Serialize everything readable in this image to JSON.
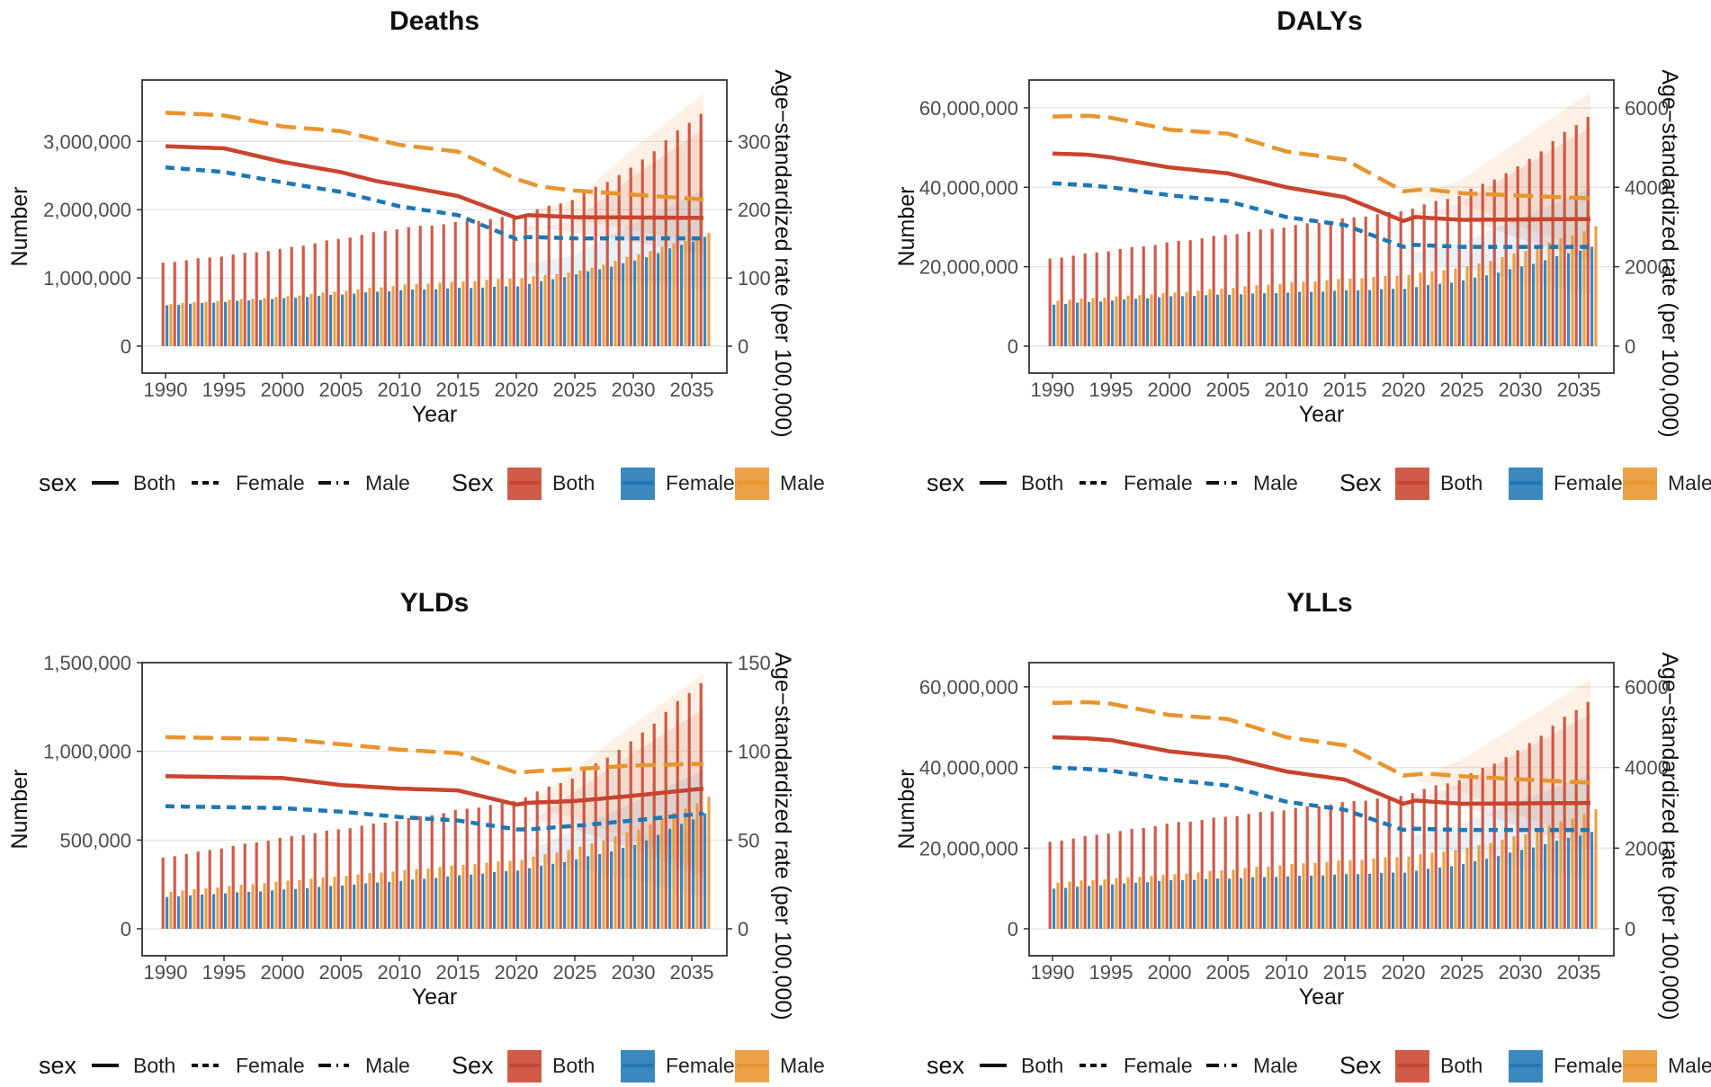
{
  "colors": {
    "both": "#C9442F",
    "female": "#1F77B4",
    "male": "#E8952E",
    "grid": "#e6e6e6",
    "frame": "#333333"
  },
  "legend": {
    "line_title": "sex",
    "bar_title": "Sex",
    "both": "Both",
    "female": "Female",
    "male": "Male"
  },
  "chart_data": [
    {
      "type": "bar+line",
      "title": "Deaths",
      "xlabel": "Year",
      "ylabel": "Number",
      "y2label": "Age−standardized rate (per 100,000)",
      "x_ticks": [
        "1990",
        "1995",
        "2000",
        "2005",
        "2010",
        "2015",
        "2020",
        "2025",
        "2030",
        "2035"
      ],
      "ylim": [
        0,
        3900000
      ],
      "y_ticks": [
        0,
        1000000,
        2000000,
        3000000
      ],
      "y_tick_labels": [
        "0",
        "1,000,000",
        "2,000,000",
        "3,000,000"
      ],
      "y2lim": [
        0,
        390
      ],
      "y2_ticks": [
        0,
        100,
        200,
        300
      ],
      "y2_tick_labels": [
        "0",
        "100",
        "200",
        "300"
      ],
      "bar_anchors": {
        "both": [
          [
            1990,
            1220000
          ],
          [
            2000,
            1420000
          ],
          [
            2010,
            1720000
          ],
          [
            2020,
            1900000
          ],
          [
            2025,
            2150000
          ],
          [
            2030,
            2600000
          ],
          [
            2036,
            3420000
          ]
        ],
        "female": [
          [
            1990,
            600000
          ],
          [
            2000,
            700000
          ],
          [
            2010,
            820000
          ],
          [
            2020,
            880000
          ],
          [
            2025,
            1050000
          ],
          [
            2030,
            1250000
          ],
          [
            2036,
            1600000
          ]
        ],
        "male": [
          [
            1990,
            620000
          ],
          [
            2000,
            730000
          ],
          [
            2010,
            900000
          ],
          [
            2020,
            1000000
          ],
          [
            2025,
            1100000
          ],
          [
            2030,
            1350000
          ],
          [
            2036,
            1650000
          ]
        ]
      },
      "rate_anchors": {
        "both": [
          [
            1990,
            293
          ],
          [
            1993,
            291
          ],
          [
            1995,
            290
          ],
          [
            2000,
            270
          ],
          [
            2005,
            255
          ],
          [
            2008,
            242
          ],
          [
            2010,
            236
          ],
          [
            2015,
            220
          ],
          [
            2020,
            188
          ],
          [
            2021,
            192
          ],
          [
            2025,
            189
          ],
          [
            2036,
            188
          ]
        ],
        "female": [
          [
            1990,
            262
          ],
          [
            1993,
            258
          ],
          [
            1995,
            255
          ],
          [
            2000,
            240
          ],
          [
            2005,
            226
          ],
          [
            2010,
            205
          ],
          [
            2015,
            192
          ],
          [
            2020,
            157
          ],
          [
            2021,
            160
          ],
          [
            2025,
            158
          ],
          [
            2036,
            158
          ]
        ],
        "male": [
          [
            1990,
            342
          ],
          [
            1993,
            340
          ],
          [
            1995,
            338
          ],
          [
            2000,
            322
          ],
          [
            2005,
            315
          ],
          [
            2010,
            295
          ],
          [
            2015,
            285
          ],
          [
            2020,
            245
          ],
          [
            2022,
            234
          ],
          [
            2025,
            228
          ],
          [
            2030,
            222
          ],
          [
            2036,
            215
          ]
        ]
      },
      "ribbon": [
        [
          2021,
          1960000,
          1960000
        ],
        [
          2025,
          2150000,
          1850000
        ],
        [
          2030,
          2900000,
          1700000
        ],
        [
          2036,
          3700000,
          1500000
        ]
      ]
    },
    {
      "type": "bar+line",
      "title": "DALYs",
      "xlabel": "Year",
      "ylabel": "Number",
      "y2label": "Age−standardized rate (per 100,000)",
      "x_ticks": [
        "1990",
        "1995",
        "2000",
        "2005",
        "2010",
        "2015",
        "2020",
        "2025",
        "2030",
        "2035"
      ],
      "ylim": [
        0,
        67000000
      ],
      "y_ticks": [
        0,
        20000000,
        40000000,
        60000000
      ],
      "y_tick_labels": [
        "0",
        "20,000,000",
        "40,000,000",
        "60,000,000"
      ],
      "y2lim": [
        0,
        6700
      ],
      "y2_ticks": [
        0,
        2000,
        4000,
        6000
      ],
      "y2_tick_labels": [
        "0",
        "2000",
        "4000",
        "6000"
      ],
      "bar_anchors": {
        "both": [
          [
            1990,
            22000000
          ],
          [
            2000,
            26000000
          ],
          [
            2010,
            30000000
          ],
          [
            2020,
            34000000
          ],
          [
            2025,
            38000000
          ],
          [
            2030,
            45000000
          ],
          [
            2036,
            58000000
          ]
        ],
        "female": [
          [
            1990,
            10500000
          ],
          [
            2000,
            12500000
          ],
          [
            2010,
            13500000
          ],
          [
            2020,
            14500000
          ],
          [
            2025,
            16500000
          ],
          [
            2030,
            20000000
          ],
          [
            2036,
            25000000
          ]
        ],
        "male": [
          [
            1990,
            11500000
          ],
          [
            2000,
            13500000
          ],
          [
            2010,
            16000000
          ],
          [
            2020,
            18000000
          ],
          [
            2025,
            20000000
          ],
          [
            2030,
            24000000
          ],
          [
            2036,
            30000000
          ]
        ]
      },
      "rate_anchors": {
        "both": [
          [
            1990,
            4850
          ],
          [
            1993,
            4820
          ],
          [
            1995,
            4750
          ],
          [
            2000,
            4500
          ],
          [
            2005,
            4350
          ],
          [
            2010,
            4000
          ],
          [
            2015,
            3750
          ],
          [
            2020,
            3150
          ],
          [
            2021,
            3250
          ],
          [
            2025,
            3180
          ],
          [
            2036,
            3200
          ]
        ],
        "female": [
          [
            1990,
            4100
          ],
          [
            1993,
            4050
          ],
          [
            1995,
            4000
          ],
          [
            2000,
            3800
          ],
          [
            2005,
            3650
          ],
          [
            2010,
            3250
          ],
          [
            2015,
            3050
          ],
          [
            2020,
            2500
          ],
          [
            2021,
            2550
          ],
          [
            2025,
            2500
          ],
          [
            2036,
            2500
          ]
        ],
        "male": [
          [
            1990,
            5780
          ],
          [
            1993,
            5800
          ],
          [
            1995,
            5750
          ],
          [
            2000,
            5450
          ],
          [
            2005,
            5350
          ],
          [
            2010,
            4900
          ],
          [
            2015,
            4700
          ],
          [
            2020,
            3900
          ],
          [
            2022,
            3950
          ],
          [
            2025,
            3850
          ],
          [
            2036,
            3720
          ]
        ]
      },
      "ribbon": [
        [
          2021,
          38000000,
          38000000
        ],
        [
          2025,
          42000000,
          36000000
        ],
        [
          2030,
          52000000,
          30000000
        ],
        [
          2036,
          64000000,
          24000000
        ]
      ]
    },
    {
      "type": "bar+line",
      "title": "YLDs",
      "xlabel": "Year",
      "ylabel": "Number",
      "y2label": "Age−standardized rate (per 100,000)",
      "x_ticks": [
        "1990",
        "1995",
        "2000",
        "2005",
        "2010",
        "2015",
        "2020",
        "2025",
        "2030",
        "2035"
      ],
      "ylim": [
        0,
        1500000
      ],
      "y_ticks": [
        0,
        500000,
        1000000,
        1500000
      ],
      "y_tick_labels": [
        "0",
        "500,000",
        "1,000,000",
        "1,500,000"
      ],
      "y2lim": [
        0,
        150
      ],
      "y2_ticks": [
        0,
        50,
        100,
        150
      ],
      "y2_tick_labels": [
        "0",
        "50",
        "100",
        "150"
      ],
      "bar_anchors": {
        "both": [
          [
            1990,
            400000
          ],
          [
            2000,
            510000
          ],
          [
            2010,
            610000
          ],
          [
            2020,
            720000
          ],
          [
            2025,
            850000
          ],
          [
            2030,
            1050000
          ],
          [
            2036,
            1390000
          ]
        ],
        "female": [
          [
            1990,
            180000
          ],
          [
            2000,
            220000
          ],
          [
            2010,
            270000
          ],
          [
            2020,
            330000
          ],
          [
            2025,
            390000
          ],
          [
            2030,
            470000
          ],
          [
            2036,
            650000
          ]
        ],
        "male": [
          [
            1990,
            210000
          ],
          [
            2000,
            270000
          ],
          [
            2010,
            330000
          ],
          [
            2020,
            390000
          ],
          [
            2025,
            460000
          ],
          [
            2030,
            560000
          ],
          [
            2036,
            740000
          ]
        ]
      },
      "rate_anchors": {
        "both": [
          [
            1990,
            86
          ],
          [
            2000,
            85
          ],
          [
            2005,
            81
          ],
          [
            2010,
            79
          ],
          [
            2015,
            78
          ],
          [
            2020,
            70
          ],
          [
            2021,
            71
          ],
          [
            2025,
            72
          ],
          [
            2030,
            75
          ],
          [
            2036,
            79
          ]
        ],
        "female": [
          [
            1990,
            69
          ],
          [
            2000,
            68
          ],
          [
            2005,
            66
          ],
          [
            2010,
            63
          ],
          [
            2015,
            61
          ],
          [
            2020,
            56
          ],
          [
            2021,
            56
          ],
          [
            2025,
            58
          ],
          [
            2030,
            61
          ],
          [
            2036,
            65
          ]
        ],
        "male": [
          [
            1990,
            108
          ],
          [
            2000,
            107
          ],
          [
            2005,
            104
          ],
          [
            2010,
            101
          ],
          [
            2015,
            99
          ],
          [
            2020,
            88
          ],
          [
            2022,
            89
          ],
          [
            2025,
            90
          ],
          [
            2030,
            92
          ],
          [
            2036,
            93
          ]
        ]
      },
      "ribbon": [
        [
          2021,
          700000,
          700000
        ],
        [
          2025,
          900000,
          620000
        ],
        [
          2030,
          1150000,
          500000
        ],
        [
          2036,
          1440000,
          320000
        ]
      ]
    },
    {
      "type": "bar+line",
      "title": "YLLs",
      "xlabel": "Year",
      "ylabel": "Number",
      "y2label": "Age−standardized rate (per 100,000)",
      "x_ticks": [
        "1990",
        "1995",
        "2000",
        "2005",
        "2010",
        "2015",
        "2020",
        "2025",
        "2030",
        "2035"
      ],
      "ylim": [
        0,
        66000000
      ],
      "y_ticks": [
        0,
        20000000,
        40000000,
        60000000
      ],
      "y_tick_labels": [
        "0",
        "20,000,000",
        "40,000,000",
        "60,000,000"
      ],
      "y2lim": [
        0,
        6600
      ],
      "y2_ticks": [
        0,
        2000,
        4000,
        6000
      ],
      "y2_tick_labels": [
        "0",
        "2000",
        "4000",
        "6000"
      ],
      "bar_anchors": {
        "both": [
          [
            1990,
            21500000
          ],
          [
            2000,
            26000000
          ],
          [
            2010,
            29500000
          ],
          [
            2020,
            33000000
          ],
          [
            2025,
            37000000
          ],
          [
            2030,
            44000000
          ],
          [
            2036,
            56500000
          ]
        ],
        "female": [
          [
            1990,
            10000000
          ],
          [
            2000,
            12000000
          ],
          [
            2010,
            13000000
          ],
          [
            2020,
            14000000
          ],
          [
            2025,
            16000000
          ],
          [
            2030,
            19500000
          ],
          [
            2036,
            24000000
          ]
        ],
        "male": [
          [
            1990,
            11500000
          ],
          [
            2000,
            13500000
          ],
          [
            2010,
            16000000
          ],
          [
            2020,
            18000000
          ],
          [
            2025,
            20000000
          ],
          [
            2030,
            23500000
          ],
          [
            2036,
            29500000
          ]
        ]
      },
      "rate_anchors": {
        "both": [
          [
            1990,
            4750
          ],
          [
            1993,
            4720
          ],
          [
            1995,
            4680
          ],
          [
            2000,
            4400
          ],
          [
            2005,
            4250
          ],
          [
            2010,
            3900
          ],
          [
            2015,
            3700
          ],
          [
            2020,
            3100
          ],
          [
            2021,
            3180
          ],
          [
            2025,
            3100
          ],
          [
            2036,
            3120
          ]
        ],
        "female": [
          [
            1990,
            4000
          ],
          [
            1993,
            3960
          ],
          [
            1995,
            3920
          ],
          [
            2000,
            3700
          ],
          [
            2005,
            3550
          ],
          [
            2010,
            3150
          ],
          [
            2015,
            2950
          ],
          [
            2020,
            2450
          ],
          [
            2021,
            2480
          ],
          [
            2025,
            2450
          ],
          [
            2036,
            2450
          ]
        ],
        "male": [
          [
            1990,
            5600
          ],
          [
            1993,
            5620
          ],
          [
            1995,
            5580
          ],
          [
            2000,
            5300
          ],
          [
            2005,
            5200
          ],
          [
            2010,
            4750
          ],
          [
            2015,
            4550
          ],
          [
            2020,
            3800
          ],
          [
            2022,
            3850
          ],
          [
            2025,
            3780
          ],
          [
            2036,
            3620
          ]
        ]
      },
      "ribbon": [
        [
          2021,
          37000000,
          37000000
        ],
        [
          2025,
          42000000,
          34000000
        ],
        [
          2030,
          51000000,
          28000000
        ],
        [
          2036,
          62000000,
          22000000
        ]
      ]
    }
  ]
}
